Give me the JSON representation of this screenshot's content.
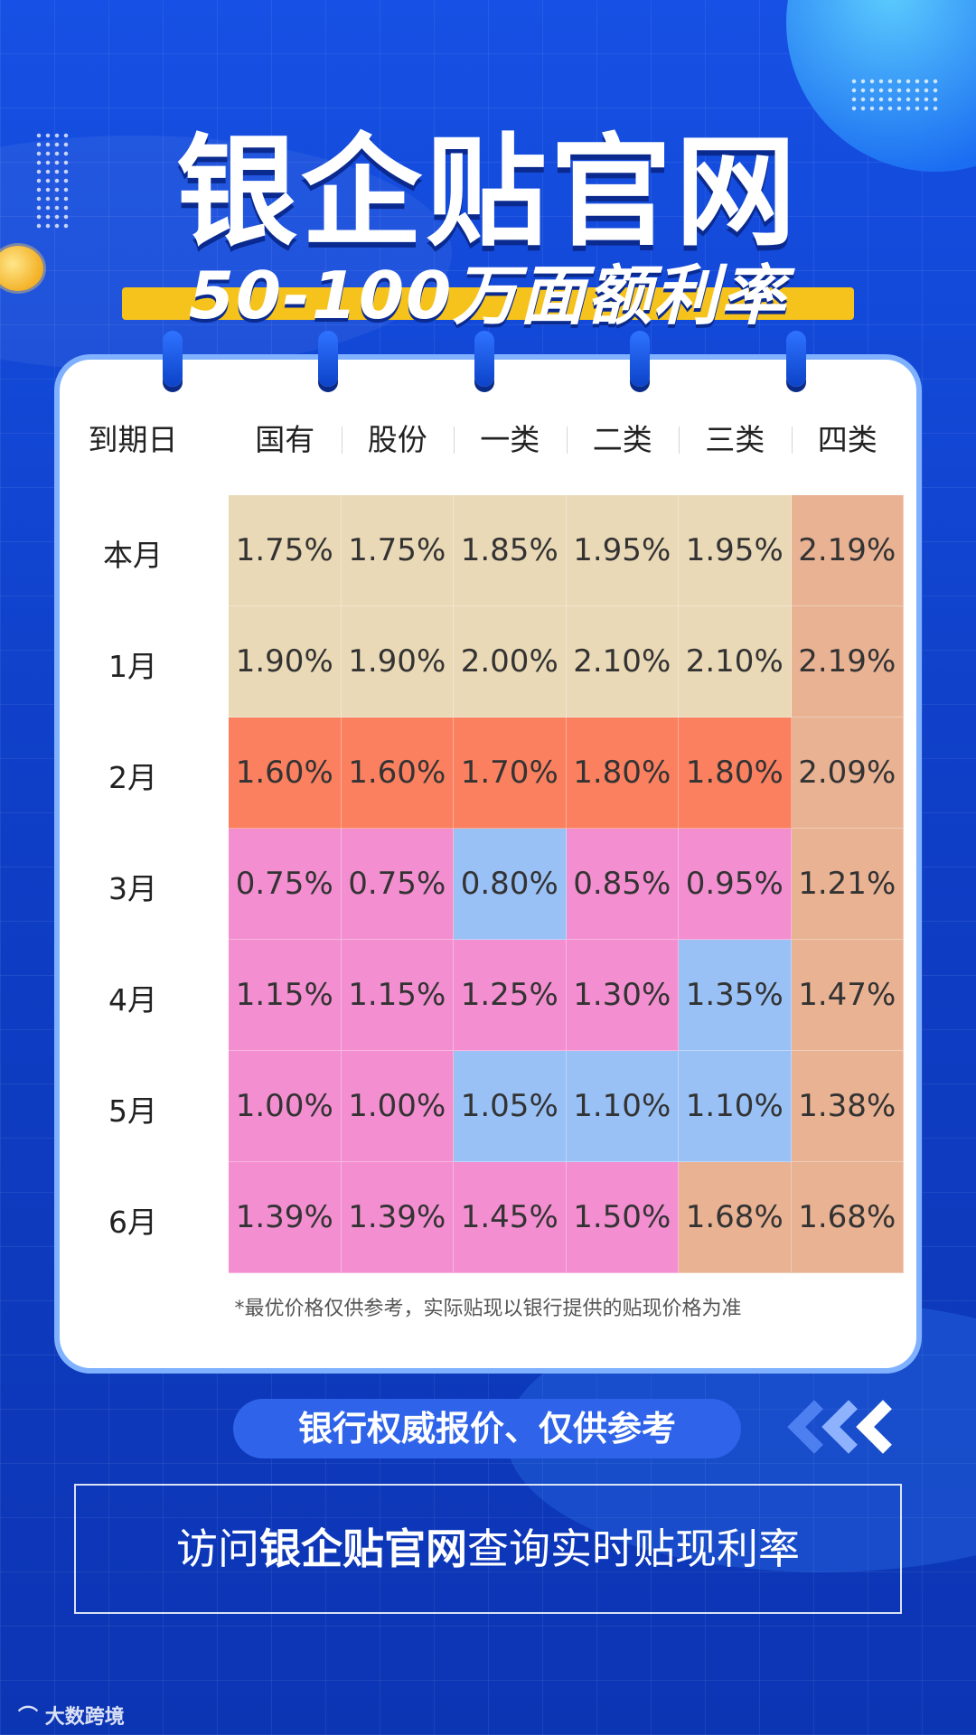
{
  "title": "银企贴官网",
  "subtitle": "50-100万面额利率",
  "table": {
    "corner": "到期日",
    "columns": [
      "国有",
      "股份",
      "一类",
      "二类",
      "三类",
      "四类"
    ],
    "rows": [
      {
        "label": "本月",
        "values": [
          "1.75%",
          "1.75%",
          "1.85%",
          "1.95%",
          "1.95%",
          "2.19%"
        ],
        "colors": [
          "#ead9b7",
          "#ead9b7",
          "#ead9b7",
          "#ead9b7",
          "#ead9b7",
          "#e8b293"
        ]
      },
      {
        "label": "1月",
        "values": [
          "1.90%",
          "1.90%",
          "2.00%",
          "2.10%",
          "2.10%",
          "2.19%"
        ],
        "colors": [
          "#ead9b7",
          "#ead9b7",
          "#ead9b7",
          "#ead9b7",
          "#ead9b7",
          "#e8b293"
        ]
      },
      {
        "label": "2月",
        "values": [
          "1.60%",
          "1.60%",
          "1.70%",
          "1.80%",
          "1.80%",
          "2.09%"
        ],
        "colors": [
          "#fb8060",
          "#fb8060",
          "#fb8060",
          "#fb8060",
          "#fb8060",
          "#e8b293"
        ]
      },
      {
        "label": "3月",
        "values": [
          "0.75%",
          "0.75%",
          "0.80%",
          "0.85%",
          "0.95%",
          "1.21%"
        ],
        "colors": [
          "#f38fd0",
          "#f38fd0",
          "#9ac1f6",
          "#f38fd0",
          "#f38fd0",
          "#e8b293"
        ]
      },
      {
        "label": "4月",
        "values": [
          "1.15%",
          "1.15%",
          "1.25%",
          "1.30%",
          "1.35%",
          "1.47%"
        ],
        "colors": [
          "#f38fd0",
          "#f38fd0",
          "#f38fd0",
          "#f38fd0",
          "#9ac1f6",
          "#e8b293"
        ]
      },
      {
        "label": "5月",
        "values": [
          "1.00%",
          "1.00%",
          "1.05%",
          "1.10%",
          "1.10%",
          "1.38%"
        ],
        "colors": [
          "#f38fd0",
          "#f38fd0",
          "#9ac1f6",
          "#9ac1f6",
          "#9ac1f6",
          "#e8b293"
        ]
      },
      {
        "label": "6月",
        "values": [
          "1.39%",
          "1.39%",
          "1.45%",
          "1.50%",
          "1.68%",
          "1.68%"
        ],
        "colors": [
          "#f38fd0",
          "#f38fd0",
          "#f38fd0",
          "#f38fd0",
          "#e8b293",
          "#e8b293"
        ]
      }
    ],
    "note": "*最优价格仅供参考，实际贴现以银行提供的贴现价格为准"
  },
  "pill_text": "银行权威报价、仅供参考",
  "cta": {
    "prefix": "访问",
    "brand": "银企贴官网",
    "suffix": "查询实时贴现利率"
  },
  "watermark": "大数跨境",
  "icons": {
    "chevrons": "chevron-left-icon",
    "rings": "binder-ring-icon"
  }
}
